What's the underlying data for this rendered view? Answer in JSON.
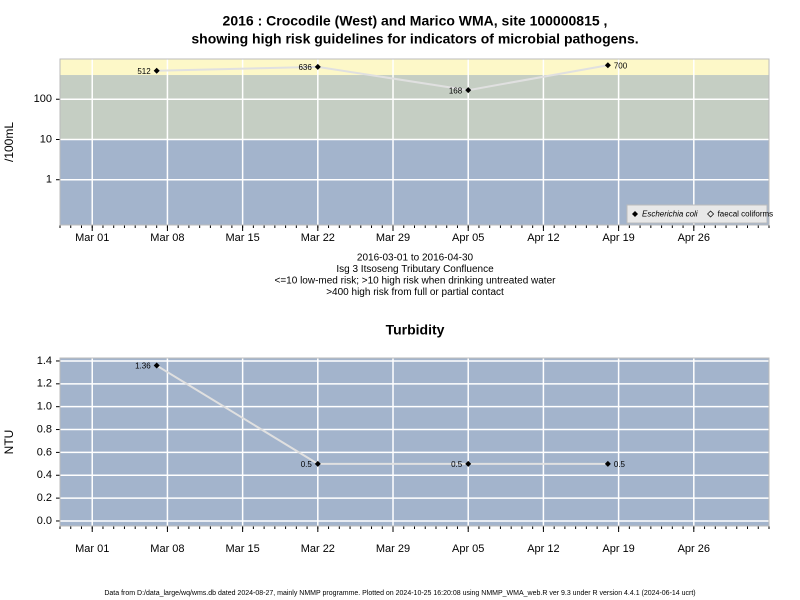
{
  "chart_data": [
    {
      "type": "line",
      "title": [
        "2016 : Crocodile (West) and Marico WMA, site 100000815 ,",
        "showing high risk guidelines for indicators of microbial pathogens."
      ],
      "caption": [
        "2016-03-01 to 2016-04-30",
        "Isg 3 Itsoseng Tributary Confluence",
        "<=10 low-med risk; >10 high risk when drinking untreated water",
        ">400 high risk from full or partial contact"
      ],
      "ylabel": "/100mL",
      "x": [
        "2016-03-07",
        "2016-03-22",
        "2016-04-05",
        "2016-04-18"
      ],
      "series": [
        {
          "name": "Escherichia coli",
          "color": "#000000",
          "values": [
            512,
            636,
            168,
            700
          ],
          "value_labels": [
            "512",
            "636",
            "168",
            "700"
          ]
        },
        {
          "name": "faecal coliforms",
          "color": "#000000",
          "values": [
            null,
            null,
            null,
            null
          ]
        }
      ],
      "line_color": "#e0e0e0",
      "log_y": true,
      "ylim": [
        0.075,
        1000
      ],
      "yticks": [
        1,
        10,
        100
      ],
      "thresholds": [
        10,
        400
      ],
      "band_colors": [
        "#a3b4cc",
        "#c5cec3",
        "#fdf8c8"
      ],
      "xlim": [
        "2016-02-27",
        "2016-05-03"
      ],
      "xticks": [
        {
          "value": "2016-03-01",
          "label": "Mar 01"
        },
        {
          "value": "2016-03-08",
          "label": "Mar 08"
        },
        {
          "value": "2016-03-15",
          "label": "Mar 15"
        },
        {
          "value": "2016-03-22",
          "label": "Mar 22"
        },
        {
          "value": "2016-03-29",
          "label": "Mar 29"
        },
        {
          "value": "2016-04-05",
          "label": "Apr 05"
        },
        {
          "value": "2016-04-12",
          "label": "Apr 12"
        },
        {
          "value": "2016-04-19",
          "label": "Apr 19"
        },
        {
          "value": "2016-04-26",
          "label": "Apr 26"
        }
      ],
      "grid": true,
      "legend": "bottom-right"
    },
    {
      "type": "line",
      "title": [
        "Turbidity"
      ],
      "ylabel": "NTU",
      "x": [
        "2016-03-07",
        "2016-03-22",
        "2016-04-05",
        "2016-04-18"
      ],
      "series": [
        {
          "name": "Turbidity",
          "color": "#000000",
          "values": [
            1.36,
            0.5,
            0.5,
            0.5
          ],
          "value_labels": [
            "1.36",
            "0.5",
            "0.5",
            "0.5"
          ]
        }
      ],
      "line_color": "#e0e0e0",
      "log_y": false,
      "ylim": [
        -0.044,
        1.426
      ],
      "yticks": [
        {
          "value": 0,
          "label": "0.0"
        },
        0.2,
        0.4,
        0.6,
        0.8,
        {
          "value": 1,
          "label": "1.0"
        },
        1.2,
        1.4
      ],
      "band_colors": [
        "#a3b4cc"
      ],
      "thresholds": [],
      "xlim": [
        "2016-02-27",
        "2016-05-03"
      ],
      "xticks": [
        {
          "value": "2016-03-01",
          "label": "Mar 01"
        },
        {
          "value": "2016-03-08",
          "label": "Mar 08"
        },
        {
          "value": "2016-03-15",
          "label": "Mar 15"
        },
        {
          "value": "2016-03-22",
          "label": "Mar 22"
        },
        {
          "value": "2016-03-29",
          "label": "Mar 29"
        },
        {
          "value": "2016-04-05",
          "label": "Apr 05"
        },
        {
          "value": "2016-04-12",
          "label": "Apr 12"
        },
        {
          "value": "2016-04-19",
          "label": "Apr 19"
        },
        {
          "value": "2016-04-26",
          "label": "Apr 26"
        }
      ],
      "grid": true
    }
  ],
  "footer": "Data from D:/data_large/wq/wms.db dated 2024-08-27, mainly NMMP programme. Plotted on 2024-10-25 16:20:08 using NMMP_WMA_web.R ver 9.3 under R version 4.4.1 (2024-06-14 ucrt)"
}
